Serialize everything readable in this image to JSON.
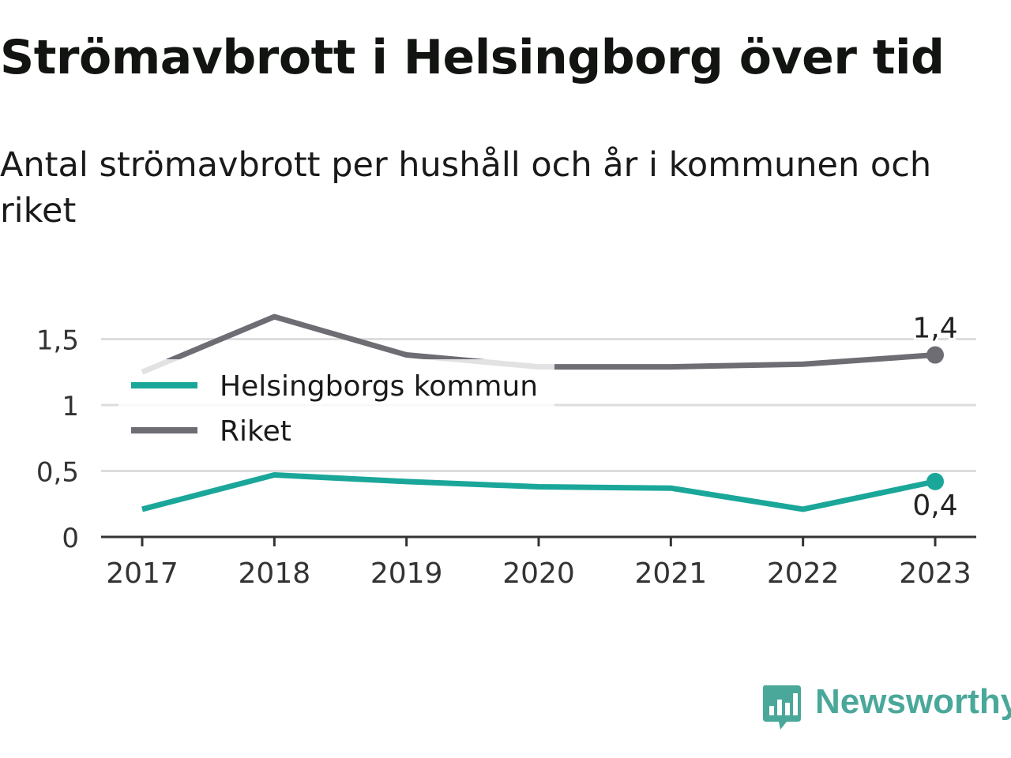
{
  "title": "Strömavbrott i Helsingborg över tid",
  "subtitle": "Antal strömavbrott per hushåll och år i kommunen och riket",
  "brand": {
    "name": "Newsworthy",
    "icon": "newsworthy-logo-icon",
    "color": "#4aa89a"
  },
  "chart_data": {
    "type": "line",
    "x": [
      "2017",
      "2018",
      "2019",
      "2020",
      "2021",
      "2022",
      "2023"
    ],
    "series": [
      {
        "name": "Helsingborgs kommun",
        "color": "#1aa79a",
        "values": [
          0.21,
          0.47,
          0.42,
          0.38,
          0.37,
          0.21,
          0.42
        ],
        "end_label": "0,4"
      },
      {
        "name": "Riket",
        "color": "#6e6d74",
        "values": [
          1.25,
          1.67,
          1.38,
          1.29,
          1.29,
          1.31,
          1.38
        ],
        "end_label": "1,4"
      }
    ],
    "ylim": [
      0,
      1.9
    ],
    "yticks": [
      {
        "value": 0,
        "label": "0"
      },
      {
        "value": 0.5,
        "label": "0,5"
      },
      {
        "value": 1,
        "label": "1"
      },
      {
        "value": 1.5,
        "label": "1,5"
      }
    ],
    "xlabel": "",
    "ylabel": "",
    "grid": true,
    "legend": "top-left"
  }
}
